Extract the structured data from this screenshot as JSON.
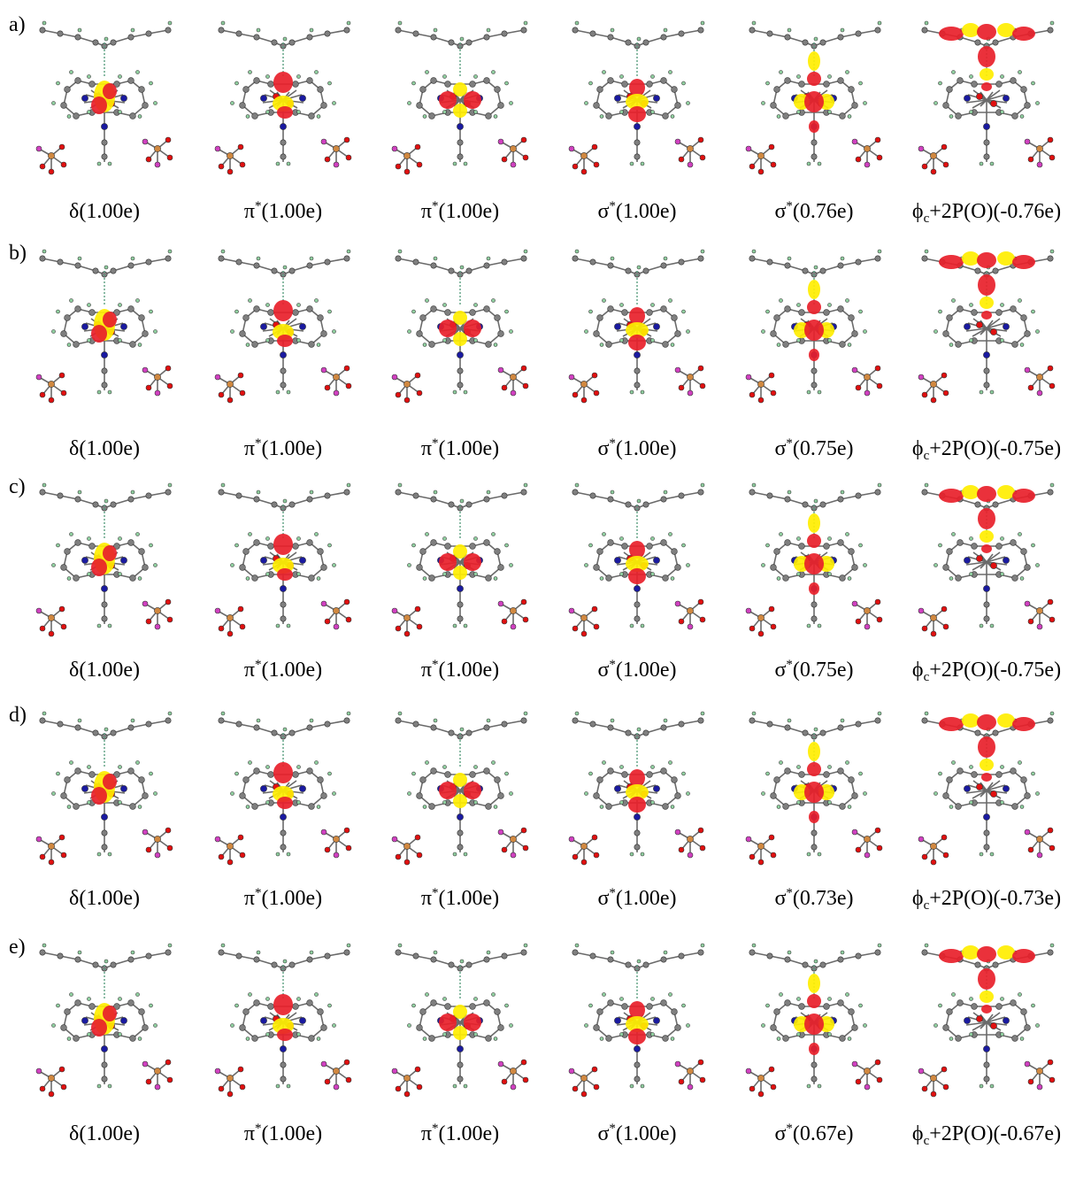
{
  "colors": {
    "carbon": "#7f7f7f",
    "hydrogen": "#8fcf9f",
    "nitrogen": "#1a1aa0",
    "oxygen": "#e01010",
    "phosphorus": "#d08840",
    "fluorine": "#d040c0",
    "lobe_positive": "#e8202a",
    "lobe_negative": "#ffee00"
  },
  "rows": [
    {
      "label": "a)",
      "panels": [
        {
          "symbol": "δ",
          "sup": "",
          "sub": "",
          "suffix": "",
          "occupancy": "(1.00e)",
          "lobe": "delta"
        },
        {
          "symbol": "π",
          "sup": "*",
          "sub": "",
          "suffix": "",
          "occupancy": "(1.00e)",
          "lobe": "pi"
        },
        {
          "symbol": "π",
          "sup": "*",
          "sub": "",
          "suffix": "",
          "occupancy": "(1.00e)",
          "lobe": "pi2"
        },
        {
          "symbol": "σ",
          "sup": "*",
          "sub": "",
          "suffix": "",
          "occupancy": "(1.00e)",
          "lobe": "sigma"
        },
        {
          "symbol": "σ",
          "sup": "*",
          "sub": "",
          "suffix": "",
          "occupancy": "(0.76e)",
          "lobe": "sigma2"
        },
        {
          "symbol": "ϕ",
          "sup": "",
          "sub": "c",
          "suffix": "+2P(O)",
          "occupancy": "(-0.76e)",
          "lobe": "phi"
        }
      ]
    },
    {
      "label": "b)",
      "panels": [
        {
          "symbol": "δ",
          "sup": "",
          "sub": "",
          "suffix": "",
          "occupancy": "(1.00e)",
          "lobe": "delta"
        },
        {
          "symbol": "π",
          "sup": "*",
          "sub": "",
          "suffix": "",
          "occupancy": "(1.00e)",
          "lobe": "pi"
        },
        {
          "symbol": "π",
          "sup": "*",
          "sub": "",
          "suffix": "",
          "occupancy": "(1.00e)",
          "lobe": "pi2"
        },
        {
          "symbol": "σ",
          "sup": "*",
          "sub": "",
          "suffix": "",
          "occupancy": "(1.00e)",
          "lobe": "sigma"
        },
        {
          "symbol": "σ",
          "sup": "*",
          "sub": "",
          "suffix": "",
          "occupancy": "(0.75e)",
          "lobe": "sigma2"
        },
        {
          "symbol": "ϕ",
          "sup": "",
          "sub": "c",
          "suffix": "+2P(O)",
          "occupancy": "(-0.75e)",
          "lobe": "phi"
        }
      ]
    },
    {
      "label": "c)",
      "panels": [
        {
          "symbol": "δ",
          "sup": "",
          "sub": "",
          "suffix": "",
          "occupancy": "(1.00e)",
          "lobe": "delta"
        },
        {
          "symbol": "π",
          "sup": "*",
          "sub": "",
          "suffix": "",
          "occupancy": "(1.00e)",
          "lobe": "pi"
        },
        {
          "symbol": "π",
          "sup": "*",
          "sub": "",
          "suffix": "",
          "occupancy": "(1.00e)",
          "lobe": "pi2"
        },
        {
          "symbol": "σ",
          "sup": "*",
          "sub": "",
          "suffix": "",
          "occupancy": "(1.00e)",
          "lobe": "sigma"
        },
        {
          "symbol": "σ",
          "sup": "*",
          "sub": "",
          "suffix": "",
          "occupancy": "(0.75e)",
          "lobe": "sigma2"
        },
        {
          "symbol": "ϕ",
          "sup": "",
          "sub": "c",
          "suffix": "+2P(O)",
          "occupancy": "(-0.75e)",
          "lobe": "phi"
        }
      ]
    },
    {
      "label": "d)",
      "panels": [
        {
          "symbol": "δ",
          "sup": "",
          "sub": "",
          "suffix": "",
          "occupancy": "(1.00e)",
          "lobe": "delta"
        },
        {
          "symbol": "π",
          "sup": "*",
          "sub": "",
          "suffix": "",
          "occupancy": "(1.00e)",
          "lobe": "pi"
        },
        {
          "symbol": "π",
          "sup": "*",
          "sub": "",
          "suffix": "",
          "occupancy": "(1.00e)",
          "lobe": "pi2"
        },
        {
          "symbol": "σ",
          "sup": "*",
          "sub": "",
          "suffix": "",
          "occupancy": "(1.00e)",
          "lobe": "sigma"
        },
        {
          "symbol": "σ",
          "sup": "*",
          "sub": "",
          "suffix": "",
          "occupancy": "(0.73e)",
          "lobe": "sigma2"
        },
        {
          "symbol": "ϕ",
          "sup": "",
          "sub": "c",
          "suffix": "+2P(O)",
          "occupancy": "(-0.73e)",
          "lobe": "phi"
        }
      ]
    },
    {
      "label": "e)",
      "panels": [
        {
          "symbol": "δ",
          "sup": "",
          "sub": "",
          "suffix": "",
          "occupancy": "(1.00e)",
          "lobe": "delta"
        },
        {
          "symbol": "π",
          "sup": "*",
          "sub": "",
          "suffix": "",
          "occupancy": "(1.00e)",
          "lobe": "pi"
        },
        {
          "symbol": "π",
          "sup": "*",
          "sub": "",
          "suffix": "",
          "occupancy": "(1.00e)",
          "lobe": "pi2"
        },
        {
          "symbol": "σ",
          "sup": "*",
          "sub": "",
          "suffix": "",
          "occupancy": "(1.00e)",
          "lobe": "sigma"
        },
        {
          "symbol": "σ",
          "sup": "*",
          "sub": "",
          "suffix": "",
          "occupancy": "(0.67e)",
          "lobe": "sigma2"
        },
        {
          "symbol": "ϕ",
          "sup": "",
          "sub": "c",
          "suffix": "+2P(O)",
          "occupancy": "(-0.67e)",
          "lobe": "phi"
        }
      ]
    }
  ]
}
